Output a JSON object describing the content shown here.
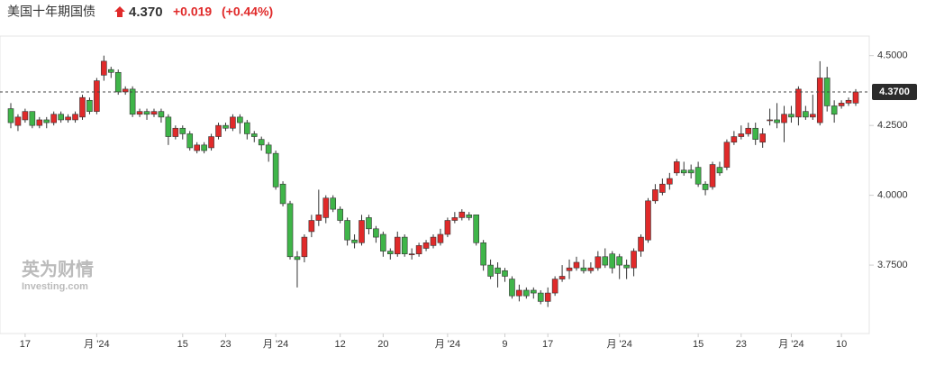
{
  "chart_data": {
    "type": "candlestick",
    "title": "美国十年期国债",
    "price": "4.370",
    "change": "+0.019",
    "change_pct": "(+0.44%)",
    "watermark": "英为财情",
    "watermark_sub": "Investing.com",
    "up_color": "#e02a2a",
    "down_color": "#3fb549",
    "ylim": [
      3.505,
      4.57
    ],
    "yticks": [
      {
        "value": 3.75,
        "label": "3.7500"
      },
      {
        "value": 4.0,
        "label": "4.0000"
      },
      {
        "value": 4.25,
        "label": "4.2500"
      },
      {
        "value": 4.5,
        "label": "4.5000"
      }
    ],
    "last": {
      "value": 4.37,
      "label": "4.3700"
    },
    "categories": [
      null,
      null,
      "17",
      null,
      null,
      null,
      null,
      null,
      null,
      null,
      null,
      null,
      "月 '24",
      null,
      null,
      null,
      null,
      null,
      null,
      null,
      null,
      null,
      null,
      null,
      "15",
      null,
      null,
      null,
      null,
      null,
      "23",
      null,
      null,
      null,
      null,
      null,
      null,
      "月 '24",
      null,
      null,
      null,
      null,
      null,
      null,
      null,
      null,
      "12",
      null,
      null,
      null,
      null,
      null,
      "20",
      null,
      null,
      null,
      null,
      null,
      null,
      null,
      null,
      "月 '24",
      null,
      null,
      null,
      null,
      null,
      null,
      null,
      "9",
      null,
      null,
      null,
      null,
      null,
      "17",
      null,
      null,
      null,
      null,
      null,
      null,
      null,
      null,
      null,
      "月 '24",
      null,
      null,
      null,
      null,
      null,
      null,
      null,
      null,
      null,
      null,
      "15",
      null,
      null,
      null,
      null,
      null,
      "23",
      null,
      null,
      null,
      null,
      null,
      null,
      "月 '24",
      null,
      null,
      null,
      null,
      null,
      null,
      "10",
      null,
      null
    ],
    "open": [
      4.31,
      4.25,
      4.27,
      4.3,
      4.25,
      4.27,
      4.26,
      4.29,
      4.27,
      4.27,
      4.28,
      4.34,
      4.3,
      4.43,
      4.45,
      4.44,
      4.37,
      4.38,
      4.29,
      4.3,
      4.29,
      4.3,
      4.28,
      4.21,
      4.24,
      4.22,
      4.16,
      4.18,
      4.17,
      4.21,
      4.25,
      4.24,
      4.28,
      4.26,
      4.22,
      4.2,
      4.18,
      4.15,
      4.04,
      3.97,
      3.78,
      3.78,
      3.87,
      3.91,
      3.92,
      3.99,
      3.95,
      3.91,
      3.84,
      3.83,
      3.92,
      3.88,
      3.86,
      3.8,
      3.79,
      3.85,
      3.79,
      3.79,
      3.81,
      3.82,
      3.83,
      3.86,
      3.91,
      3.92,
      3.93,
      3.93,
      3.83,
      3.75,
      3.74,
      3.73,
      3.7,
      3.64,
      3.66,
      3.66,
      3.65,
      3.62,
      3.65,
      3.7,
      3.73,
      3.74,
      3.74,
      3.73,
      3.74,
      3.78,
      3.79,
      3.78,
      3.75,
      3.74,
      3.8,
      3.84,
      3.98,
      4.01,
      4.04,
      4.08,
      4.09,
      4.09,
      4.1,
      4.04,
      4.03,
      4.1,
      4.1,
      4.19,
      4.21,
      4.22,
      4.24,
      4.19,
      4.27,
      4.27,
      4.26,
      4.29,
      4.28,
      4.3,
      4.28,
      4.26,
      4.42,
      4.32,
      4.32,
      4.33,
      4.33
    ],
    "high": [
      4.33,
      4.29,
      4.31,
      4.3,
      4.28,
      4.28,
      4.3,
      4.3,
      4.29,
      4.3,
      4.36,
      4.35,
      4.42,
      4.5,
      4.46,
      4.45,
      4.39,
      4.39,
      4.31,
      4.31,
      4.31,
      4.31,
      4.29,
      4.25,
      4.25,
      4.23,
      4.19,
      4.19,
      4.22,
      4.26,
      4.26,
      4.29,
      4.29,
      4.27,
      4.23,
      4.21,
      4.19,
      4.16,
      4.05,
      3.98,
      3.8,
      3.86,
      3.93,
      4.02,
      4.0,
      4.0,
      3.96,
      3.92,
      3.86,
      3.93,
      3.93,
      3.89,
      3.87,
      3.81,
      3.87,
      3.86,
      3.81,
      3.83,
      3.84,
      3.86,
      3.88,
      3.92,
      3.94,
      3.95,
      3.94,
      3.93,
      3.84,
      3.77,
      3.76,
      3.74,
      3.71,
      3.68,
      3.67,
      3.67,
      3.66,
      3.67,
      3.71,
      3.75,
      3.77,
      3.78,
      3.77,
      3.76,
      3.8,
      3.81,
      3.8,
      3.79,
      3.77,
      3.81,
      3.86,
      3.99,
      4.04,
      4.06,
      4.08,
      4.13,
      4.12,
      4.11,
      4.12,
      4.05,
      4.12,
      4.12,
      4.2,
      4.23,
      4.25,
      4.26,
      4.26,
      4.24,
      4.31,
      4.33,
      4.32,
      4.32,
      4.39,
      4.32,
      4.36,
      4.48,
      4.46,
      4.34,
      4.34,
      4.35,
      4.38
    ],
    "low": [
      4.24,
      4.23,
      4.26,
      4.24,
      4.24,
      4.24,
      4.25,
      4.26,
      4.26,
      4.26,
      4.27,
      4.29,
      4.29,
      4.41,
      4.42,
      4.36,
      4.36,
      4.28,
      4.28,
      4.27,
      4.28,
      4.26,
      4.18,
      4.2,
      4.2,
      4.16,
      4.15,
      4.15,
      4.16,
      4.2,
      4.23,
      4.23,
      4.22,
      4.2,
      4.19,
      4.16,
      4.12,
      4.02,
      3.96,
      3.77,
      3.67,
      3.76,
      3.85,
      3.89,
      3.9,
      3.94,
      3.9,
      3.82,
      3.81,
      3.82,
      3.86,
      3.83,
      3.78,
      3.77,
      3.78,
      3.78,
      3.77,
      3.78,
      3.8,
      3.81,
      3.82,
      3.85,
      3.9,
      3.91,
      3.91,
      3.82,
      3.73,
      3.7,
      3.67,
      3.69,
      3.63,
      3.62,
      3.63,
      3.63,
      3.61,
      3.6,
      3.64,
      3.69,
      3.7,
      3.73,
      3.72,
      3.72,
      3.73,
      3.74,
      3.72,
      3.7,
      3.7,
      3.71,
      3.78,
      3.83,
      3.97,
      4.0,
      4.02,
      4.07,
      4.07,
      4.06,
      4.03,
      4.0,
      4.02,
      4.07,
      4.09,
      4.18,
      4.2,
      4.21,
      4.18,
      4.17,
      4.25,
      4.24,
      4.19,
      4.26,
      4.25,
      4.27,
      4.27,
      4.25,
      4.3,
      4.26,
      4.31,
      4.32,
      4.32
    ],
    "close": [
      4.26,
      4.28,
      4.3,
      4.25,
      4.27,
      4.26,
      4.29,
      4.27,
      4.28,
      4.29,
      4.35,
      4.3,
      4.41,
      4.48,
      4.44,
      4.37,
      4.38,
      4.29,
      4.3,
      4.29,
      4.3,
      4.28,
      4.21,
      4.24,
      4.22,
      4.17,
      4.18,
      4.16,
      4.21,
      4.25,
      4.24,
      4.28,
      4.26,
      4.22,
      4.21,
      4.18,
      4.15,
      4.03,
      3.97,
      3.78,
      3.77,
      3.85,
      3.91,
      3.93,
      3.99,
      3.95,
      3.91,
      3.84,
      3.83,
      3.91,
      3.88,
      3.85,
      3.8,
      3.79,
      3.85,
      3.79,
      3.79,
      3.82,
      3.83,
      3.85,
      3.86,
      3.91,
      3.92,
      3.94,
      3.92,
      3.83,
      3.75,
      3.71,
      3.72,
      3.71,
      3.64,
      3.66,
      3.64,
      3.65,
      3.62,
      3.65,
      3.7,
      3.71,
      3.74,
      3.76,
      3.73,
      3.74,
      3.78,
      3.75,
      3.74,
      3.75,
      3.74,
      3.8,
      3.85,
      3.98,
      4.02,
      4.04,
      4.06,
      4.12,
      4.08,
      4.08,
      4.04,
      4.02,
      4.11,
      4.08,
      4.19,
      4.21,
      4.22,
      4.24,
      4.2,
      4.22,
      4.27,
      4.26,
      4.29,
      4.28,
      4.38,
      4.28,
      4.29,
      4.42,
      4.32,
      4.29,
      4.33,
      4.34,
      4.37
    ]
  }
}
